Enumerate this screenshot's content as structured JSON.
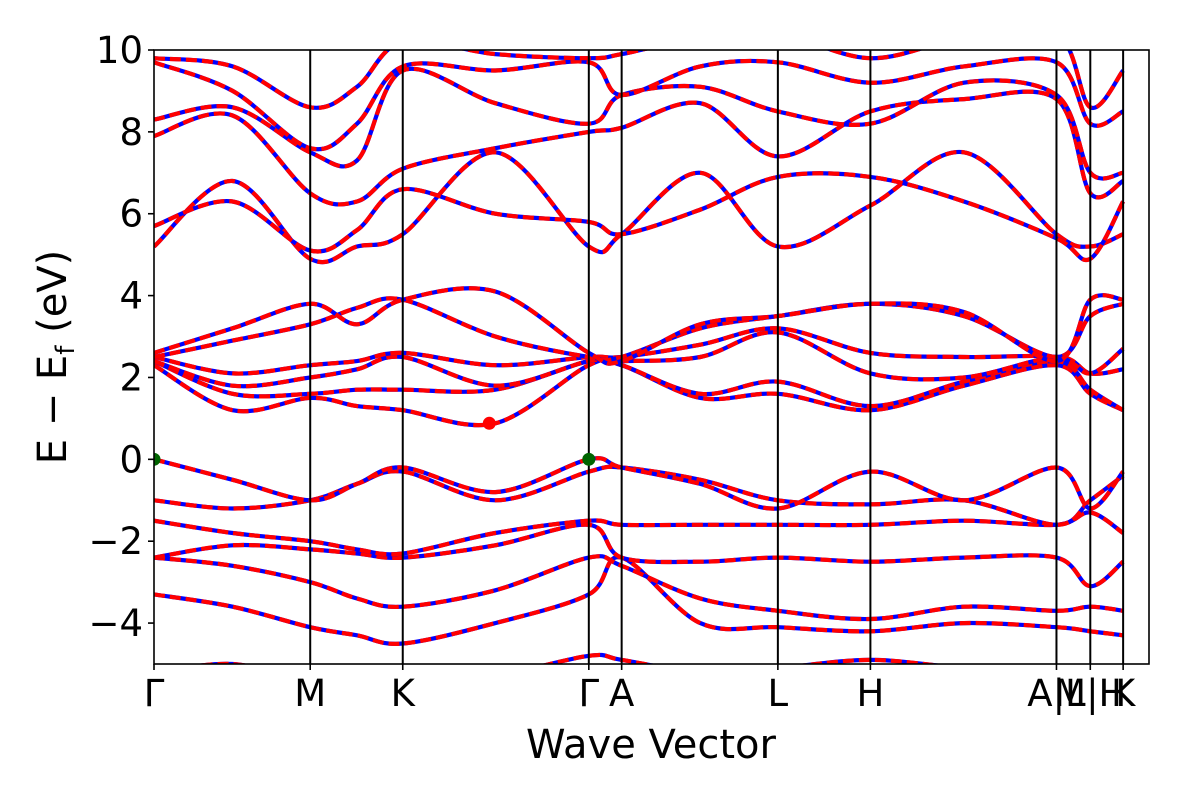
{
  "chart_data": {
    "type": "line",
    "xlabel": "Wave Vector",
    "ylabel": "E − E",
    "ylabel_sub": "f",
    "ylabel_unit": " (eV)",
    "ylim": [
      -5,
      10
    ],
    "grid": false,
    "y_ticks": [
      -4,
      -2,
      0,
      2,
      4,
      6,
      8,
      10
    ],
    "y_tick_labels": [
      "−4",
      "−2",
      "0",
      "2",
      "4",
      "6",
      "8",
      "10"
    ],
    "kpoints": [
      {
        "label": "Γ",
        "x": 0.0
      },
      {
        "label": "M",
        "x": 0.157
      },
      {
        "label": "K",
        "x": 0.25
      },
      {
        "label": "Γ",
        "x": 0.437
      },
      {
        "label": "A",
        "x": 0.47
      },
      {
        "label": "L",
        "x": 0.627
      },
      {
        "label": "H",
        "x": 0.72
      },
      {
        "label": "A|L",
        "x": 0.907
      },
      {
        "label": "M|H",
        "x": 0.941
      },
      {
        "label": "K",
        "x": 0.974
      }
    ],
    "series_colors": {
      "dft": "#ff0000",
      "interp": "#0000ff"
    },
    "markers": [
      {
        "name": "vbm",
        "x": 0.0,
        "y": 0.0,
        "color": "#006400"
      },
      {
        "name": "vbm",
        "x": 0.437,
        "y": 0.0,
        "color": "#006400"
      },
      {
        "name": "cbm",
        "x": 0.337,
        "y": 0.88,
        "color": "#ff0000"
      }
    ],
    "band_keypoints": {
      "x": [
        0.0,
        0.079,
        0.157,
        0.204,
        0.25,
        0.343,
        0.437,
        0.47,
        0.549,
        0.627,
        0.72,
        0.814,
        0.907,
        0.941,
        0.974
      ],
      "bands": [
        [
          -5.2,
          -5.0,
          -5.4,
          -5.1,
          -5.6,
          -5.3,
          -4.8,
          -4.9,
          -5.2,
          -5.1,
          -4.9,
          -5.1,
          -5.2,
          -5.1,
          -5.3
        ],
        [
          -3.3,
          -3.6,
          -4.1,
          -4.3,
          -4.5,
          -4.0,
          -3.3,
          -2.4,
          -4.0,
          -4.1,
          -4.2,
          -4.0,
          -4.1,
          -4.2,
          -4.3
        ],
        [
          -2.4,
          -2.6,
          -3.0,
          -3.4,
          -3.6,
          -3.2,
          -2.4,
          -2.6,
          -3.4,
          -3.7,
          -3.9,
          -3.6,
          -3.7,
          -3.6,
          -3.7
        ],
        [
          -2.4,
          -2.1,
          -2.2,
          -2.3,
          -2.4,
          -2.1,
          -1.6,
          -2.4,
          -2.5,
          -2.4,
          -2.5,
          -2.4,
          -2.4,
          -3.1,
          -2.5
        ],
        [
          -1.5,
          -1.8,
          -2.0,
          -2.2,
          -2.3,
          -1.8,
          -1.5,
          -1.6,
          -1.6,
          -1.6,
          -1.6,
          -1.5,
          -1.6,
          -1.3,
          -1.8
        ],
        [
          -1.0,
          -1.2,
          -1.0,
          -0.6,
          -0.3,
          -1.0,
          -0.3,
          -0.2,
          -0.5,
          -1.0,
          -1.1,
          -1.0,
          -1.6,
          -1.0,
          -0.4
        ],
        [
          0.0,
          -0.5,
          -1.0,
          -0.6,
          -0.2,
          -0.8,
          0.0,
          -0.2,
          -0.6,
          -1.2,
          -0.3,
          -1.0,
          -0.2,
          -1.2,
          -0.3
        ],
        [
          2.3,
          1.2,
          1.5,
          1.3,
          1.2,
          0.88,
          2.3,
          2.3,
          1.5,
          1.6,
          1.2,
          1.8,
          2.3,
          1.6,
          1.2
        ],
        [
          2.4,
          1.6,
          1.6,
          1.7,
          1.7,
          1.7,
          2.4,
          2.3,
          1.6,
          1.9,
          1.3,
          1.9,
          2.4,
          1.7,
          1.2
        ],
        [
          2.4,
          1.8,
          2.0,
          2.2,
          2.5,
          1.8,
          2.4,
          2.4,
          2.5,
          3.1,
          2.1,
          2.0,
          2.5,
          2.1,
          2.2
        ],
        [
          2.5,
          2.1,
          2.3,
          2.4,
          2.6,
          2.3,
          2.5,
          2.5,
          2.8,
          3.2,
          2.6,
          2.5,
          2.5,
          2.1,
          2.7
        ],
        [
          2.5,
          2.9,
          3.3,
          3.7,
          3.9,
          3.0,
          2.5,
          2.5,
          3.2,
          3.5,
          3.8,
          3.5,
          2.5,
          3.5,
          3.8
        ],
        [
          2.6,
          3.2,
          3.8,
          3.3,
          3.9,
          4.1,
          2.6,
          2.4,
          3.3,
          3.5,
          3.8,
          3.6,
          2.4,
          3.9,
          3.9
        ],
        [
          5.2,
          6.8,
          4.9,
          5.2,
          5.5,
          7.5,
          5.2,
          5.5,
          7.0,
          5.2,
          6.2,
          7.5,
          5.5,
          5.2,
          5.5
        ],
        [
          5.7,
          6.3,
          5.1,
          5.6,
          6.6,
          6.0,
          5.8,
          5.5,
          6.1,
          6.9,
          6.9,
          6.3,
          5.4,
          4.9,
          6.3
        ],
        [
          7.9,
          8.4,
          6.5,
          6.3,
          7.1,
          7.6,
          8.0,
          8.1,
          8.7,
          7.4,
          8.5,
          8.8,
          8.8,
          6.5,
          6.8
        ],
        [
          8.3,
          8.6,
          7.5,
          7.3,
          9.5,
          8.7,
          8.2,
          8.9,
          9.1,
          8.5,
          8.2,
          9.2,
          8.9,
          7.0,
          7.0
        ],
        [
          9.7,
          9.0,
          7.6,
          8.2,
          9.6,
          9.5,
          9.7,
          8.9,
          9.6,
          9.7,
          9.2,
          9.6,
          9.7,
          8.2,
          8.5
        ],
        [
          9.8,
          9.6,
          8.6,
          9.1,
          10.2,
          9.9,
          9.8,
          9.9,
          10.3,
          10.4,
          9.8,
          10.3,
          10.4,
          8.6,
          9.5
        ]
      ]
    }
  }
}
